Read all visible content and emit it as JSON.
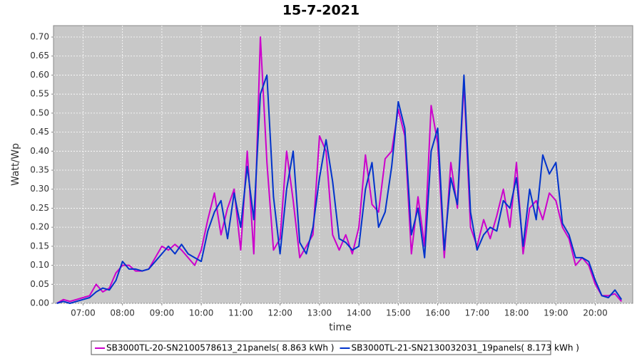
{
  "chart_data": {
    "type": "line",
    "title": "15-7-2021",
    "x_label": "time",
    "y_label": "Watt/Wp",
    "x": [
      "06:20",
      "06:30",
      "06:40",
      "06:50",
      "07:00",
      "07:10",
      "07:20",
      "07:30",
      "07:40",
      "07:50",
      "08:00",
      "08:10",
      "08:20",
      "08:30",
      "08:40",
      "08:50",
      "09:00",
      "09:10",
      "09:20",
      "09:30",
      "09:40",
      "09:50",
      "10:00",
      "10:10",
      "10:20",
      "10:30",
      "10:40",
      "10:50",
      "11:00",
      "11:10",
      "11:20",
      "11:30",
      "11:40",
      "11:50",
      "12:00",
      "12:10",
      "12:20",
      "12:30",
      "12:40",
      "12:50",
      "13:00",
      "13:10",
      "13:20",
      "13:30",
      "13:40",
      "13:50",
      "14:00",
      "14:10",
      "14:20",
      "14:30",
      "14:40",
      "14:50",
      "15:00",
      "15:10",
      "15:20",
      "15:30",
      "15:40",
      "15:50",
      "16:00",
      "16:10",
      "16:20",
      "16:30",
      "16:40",
      "16:50",
      "17:00",
      "17:10",
      "17:20",
      "17:30",
      "17:40",
      "17:50",
      "18:00",
      "18:10",
      "18:20",
      "18:30",
      "18:40",
      "18:50",
      "19:00",
      "19:10",
      "19:20",
      "19:30",
      "19:40",
      "19:50",
      "20:00",
      "20:10",
      "20:20",
      "20:30",
      "20:40"
    ],
    "series": [
      {
        "name": "SB3000TL-20-SN2100578613_21panels( 8.863 kWh )",
        "color": "#cc00cc",
        "values": [
          0,
          0.01,
          0.005,
          0.01,
          0.015,
          0.02,
          0.05,
          0.03,
          0.04,
          0.08,
          0.1,
          0.1,
          0.085,
          0.085,
          0.09,
          0.12,
          0.15,
          0.14,
          0.155,
          0.14,
          0.12,
          0.1,
          0.14,
          0.22,
          0.29,
          0.18,
          0.25,
          0.3,
          0.14,
          0.4,
          0.13,
          0.7,
          0.37,
          0.14,
          0.17,
          0.4,
          0.27,
          0.12,
          0.15,
          0.18,
          0.44,
          0.4,
          0.18,
          0.14,
          0.18,
          0.13,
          0.2,
          0.39,
          0.26,
          0.24,
          0.38,
          0.4,
          0.51,
          0.44,
          0.13,
          0.28,
          0.15,
          0.52,
          0.42,
          0.12,
          0.37,
          0.25,
          0.58,
          0.2,
          0.15,
          0.22,
          0.17,
          0.23,
          0.3,
          0.2,
          0.37,
          0.13,
          0.25,
          0.27,
          0.22,
          0.29,
          0.27,
          0.2,
          0.17,
          0.1,
          0.12,
          0.1,
          0.05,
          0.02,
          0.02,
          0.025,
          0.005
        ]
      },
      {
        "name": "SB3000TL-21-SN2130032031_19panels( 8.173 kWh )",
        "color": "#0033cc",
        "values": [
          0,
          0.005,
          0,
          0.005,
          0.01,
          0.015,
          0.03,
          0.04,
          0.035,
          0.06,
          0.11,
          0.09,
          0.09,
          0.085,
          0.09,
          0.11,
          0.13,
          0.15,
          0.13,
          0.155,
          0.13,
          0.12,
          0.11,
          0.19,
          0.24,
          0.27,
          0.17,
          0.29,
          0.2,
          0.36,
          0.22,
          0.55,
          0.6,
          0.28,
          0.13,
          0.3,
          0.4,
          0.16,
          0.13,
          0.2,
          0.33,
          0.43,
          0.32,
          0.17,
          0.16,
          0.14,
          0.15,
          0.3,
          0.37,
          0.2,
          0.24,
          0.36,
          0.53,
          0.46,
          0.18,
          0.25,
          0.12,
          0.4,
          0.46,
          0.14,
          0.33,
          0.26,
          0.6,
          0.24,
          0.14,
          0.18,
          0.2,
          0.19,
          0.27,
          0.25,
          0.33,
          0.15,
          0.3,
          0.22,
          0.39,
          0.34,
          0.37,
          0.21,
          0.18,
          0.12,
          0.12,
          0.11,
          0.06,
          0.02,
          0.015,
          0.035,
          0.01
        ]
      }
    ],
    "xlim": [
      "06:15",
      "20:57"
    ],
    "xticks": [
      "07:00",
      "08:00",
      "09:00",
      "10:00",
      "11:00",
      "12:00",
      "13:00",
      "14:00",
      "15:00",
      "16:00",
      "17:00",
      "18:00",
      "19:00",
      "20:00"
    ],
    "ylim": [
      0,
      0.73
    ],
    "yticks": [
      {
        "value": 0,
        "label": "0.00"
      },
      0.05,
      {
        "value": 0.1,
        "label": "0.10"
      },
      0.15,
      {
        "value": 0.2,
        "label": "0.20"
      },
      0.25,
      {
        "value": 0.3,
        "label": "0.30"
      },
      0.35,
      {
        "value": 0.4,
        "label": "0.40"
      },
      0.45,
      {
        "value": 0.5,
        "label": "0.50"
      },
      0.55,
      {
        "value": 0.6,
        "label": "0.60"
      },
      0.65,
      {
        "value": 0.7,
        "label": "0.70"
      }
    ],
    "grid": true,
    "legend": "bottom"
  }
}
